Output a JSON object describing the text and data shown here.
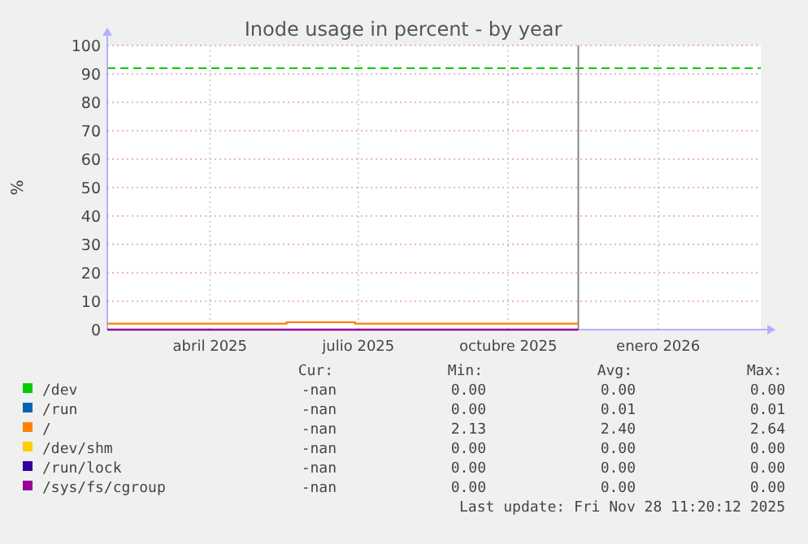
{
  "chart_data": {
    "type": "step",
    "title": "Inode usage in percent - by year",
    "ylabel": "%",
    "xlim": [
      "2025-02-12",
      "2026-03-20"
    ],
    "xticks": [
      {
        "value": "2025-04-16",
        "label": "abril 2025"
      },
      {
        "value": "2025-07-16",
        "label": "julio 2025"
      },
      {
        "value": "2025-10-16",
        "label": "octubre 2025"
      },
      {
        "value": "2026-01-16",
        "label": "enero 2026"
      }
    ],
    "ylim": [
      0,
      100
    ],
    "yticks": [
      0,
      10,
      20,
      30,
      40,
      50,
      60,
      70,
      80,
      90,
      100
    ],
    "grid": true,
    "legend": "bottom",
    "series": [
      {
        "name": "/dev",
        "color": "#00cc00",
        "values": [
          null
        ]
      },
      {
        "name": "/run",
        "color": "#0066b3",
        "values": [
          null
        ]
      },
      {
        "name": "/",
        "color": "#ff8000",
        "x": [
          "2025-02-12",
          "2025-06-02",
          "2025-07-14",
          "2025-11-28"
        ],
        "values": [
          2.1,
          2.6,
          2.1,
          2.1
        ]
      },
      {
        "name": "/dev/shm",
        "color": "#ffcc00",
        "values": [
          null
        ]
      },
      {
        "name": "/run/lock",
        "color": "#330099",
        "values": [
          null
        ]
      },
      {
        "name": "/sys/fs/cgroup",
        "color": "#990099",
        "x": [
          "2025-02-12",
          "2025-11-28"
        ],
        "values": [
          0,
          0
        ]
      }
    ],
    "ref_lines": [
      {
        "axis": "y",
        "value": 92,
        "color": "#00cc00",
        "line_style": "dashed"
      },
      {
        "axis": "x",
        "value": "2025-11-28",
        "color": "#888888",
        "line_style": "solid"
      }
    ],
    "annotations": [
      "Cur:",
      "Min:",
      "Avg:",
      "Max:",
      "-nan",
      "0.00",
      "0.00",
      "0.00",
      "-nan",
      "0.00",
      "0.01",
      "0.01",
      "-nan",
      "2.13",
      "2.40",
      "2.64",
      "-nan",
      "0.00",
      "0.00",
      "0.00",
      "-nan",
      "0.00",
      "0.00",
      "0.00",
      "-nan",
      "0.00",
      "0.00",
      "0.00",
      "Last update: Fri Nov 28 11:20:12 2025"
    ]
  }
}
